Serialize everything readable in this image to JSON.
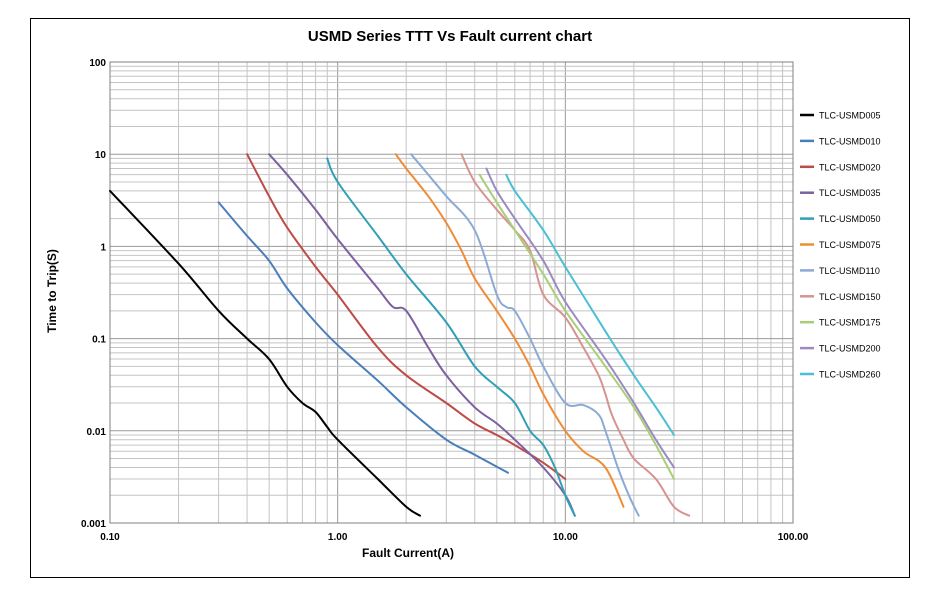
{
  "chart_data": {
    "type": "line",
    "title": "USMD Series TTT Vs Fault current chart",
    "xlabel": "Fault Current(A)",
    "ylabel": "Time to Trip(S)",
    "x_scale": "log",
    "y_scale": "log",
    "xlim": [
      0.1,
      100
    ],
    "ylim": [
      0.001,
      100
    ],
    "x_ticks": [
      0.1,
      1,
      10,
      100
    ],
    "x_tick_labels": [
      "0.10",
      "1.00",
      "10.00",
      "100.00"
    ],
    "y_ticks": [
      0.001,
      0.01,
      0.1,
      1,
      10,
      100
    ],
    "y_tick_labels": [
      "0.001",
      "0.01",
      "0.1",
      "1",
      "10",
      "100"
    ],
    "grid": true,
    "legend_position": "right",
    "series": [
      {
        "name": "TLC-USMD005",
        "color": "#000000",
        "x": [
          0.1,
          0.2,
          0.3,
          0.4,
          0.5,
          0.6,
          0.7,
          0.8,
          0.9,
          1.0,
          1.5,
          2.0,
          2.3
        ],
        "y": [
          4.0,
          0.65,
          0.2,
          0.1,
          0.06,
          0.03,
          0.02,
          0.016,
          0.011,
          0.008,
          0.003,
          0.0015,
          0.0012
        ]
      },
      {
        "name": "TLC-USMD010",
        "color": "#4a7ebb",
        "x": [
          0.3,
          0.4,
          0.5,
          0.6,
          0.8,
          1.0,
          1.5,
          2.0,
          3.0,
          4.0,
          5.6
        ],
        "y": [
          3.0,
          1.3,
          0.7,
          0.35,
          0.15,
          0.085,
          0.035,
          0.018,
          0.008,
          0.0055,
          0.0035
        ]
      },
      {
        "name": "TLC-USMD020",
        "color": "#be4b48",
        "x": [
          0.4,
          0.5,
          0.6,
          0.8,
          1.0,
          1.5,
          2.0,
          3.0,
          4.0,
          5.0,
          6.0,
          8.0,
          10.0
        ],
        "y": [
          10.0,
          3.5,
          1.6,
          0.6,
          0.3,
          0.08,
          0.04,
          0.02,
          0.012,
          0.009,
          0.007,
          0.0045,
          0.003
        ]
      },
      {
        "name": "TLC-USMD035",
        "color": "#7d60a0",
        "x": [
          0.5,
          0.6,
          0.8,
          1.0,
          1.5,
          1.75,
          2.0,
          2.5,
          3.0,
          4.0,
          5.0,
          6.0,
          8.0,
          10.0,
          11.0
        ],
        "y": [
          10.0,
          6.0,
          2.5,
          1.2,
          0.35,
          0.22,
          0.2,
          0.08,
          0.04,
          0.018,
          0.012,
          0.008,
          0.004,
          0.002,
          0.0012
        ]
      },
      {
        "name": "TLC-USMD050",
        "color": "#31a0b5",
        "x": [
          0.9,
          1.0,
          1.5,
          2.0,
          3.0,
          4.0,
          5.0,
          6.0,
          7.0,
          8.0,
          9.0,
          10.0,
          11.0
        ],
        "y": [
          9.0,
          5.0,
          1.3,
          0.5,
          0.15,
          0.05,
          0.03,
          0.02,
          0.01,
          0.007,
          0.004,
          0.002,
          0.0012
        ]
      },
      {
        "name": "TLC-USMD075",
        "color": "#f08c34",
        "x": [
          1.8,
          2.0,
          2.5,
          3.0,
          3.5,
          4.0,
          5.0,
          6.0,
          7.0,
          8.0,
          10.0,
          12.0,
          15.0,
          18.0
        ],
        "y": [
          10.0,
          7.0,
          3.5,
          1.8,
          0.9,
          0.45,
          0.2,
          0.1,
          0.05,
          0.025,
          0.01,
          0.006,
          0.004,
          0.0015
        ]
      },
      {
        "name": "TLC-USMD110",
        "color": "#8baad6",
        "x": [
          2.1,
          2.5,
          3.0,
          4.0,
          5.0,
          5.5,
          6.0,
          7.0,
          8.0,
          10.0,
          12.0,
          14.0,
          15.0,
          17.0,
          19.0,
          21.0
        ],
        "y": [
          10.0,
          6.0,
          3.5,
          1.5,
          0.3,
          0.22,
          0.2,
          0.1,
          0.05,
          0.02,
          0.019,
          0.015,
          0.01,
          0.004,
          0.002,
          0.0012
        ]
      },
      {
        "name": "TLC-USMD150",
        "color": "#d69390",
        "x": [
          3.5,
          4.0,
          5.0,
          6.0,
          7.0,
          8.0,
          10.0,
          12.0,
          14.0,
          15.0,
          16.0,
          18.0,
          20.0,
          25.0,
          30.0,
          35.0
        ],
        "y": [
          10.0,
          5.0,
          2.5,
          1.5,
          0.9,
          0.3,
          0.17,
          0.08,
          0.04,
          0.025,
          0.015,
          0.008,
          0.005,
          0.003,
          0.0015,
          0.0012
        ]
      },
      {
        "name": "TLC-USMD175",
        "color": "#a8cf78",
        "x": [
          4.2,
          5.0,
          6.0,
          8.0,
          10.0,
          15.0,
          20.0,
          25.0,
          30.0
        ],
        "y": [
          6.0,
          3.0,
          1.5,
          0.5,
          0.2,
          0.05,
          0.018,
          0.007,
          0.003
        ]
      },
      {
        "name": "TLC-USMD200",
        "color": "#9c8ac0",
        "x": [
          4.5,
          5.0,
          6.0,
          8.0,
          10.0,
          15.0,
          20.0,
          25.0,
          30.0
        ],
        "y": [
          7.0,
          4.0,
          2.0,
          0.7,
          0.25,
          0.06,
          0.02,
          0.008,
          0.004
        ]
      },
      {
        "name": "TLC-USMD260",
        "color": "#4bbfd3",
        "x": [
          5.5,
          6.0,
          8.0,
          10.0,
          15.0,
          20.0,
          25.0,
          30.0
        ],
        "y": [
          6.0,
          4.0,
          1.5,
          0.6,
          0.12,
          0.04,
          0.018,
          0.009
        ]
      }
    ]
  }
}
